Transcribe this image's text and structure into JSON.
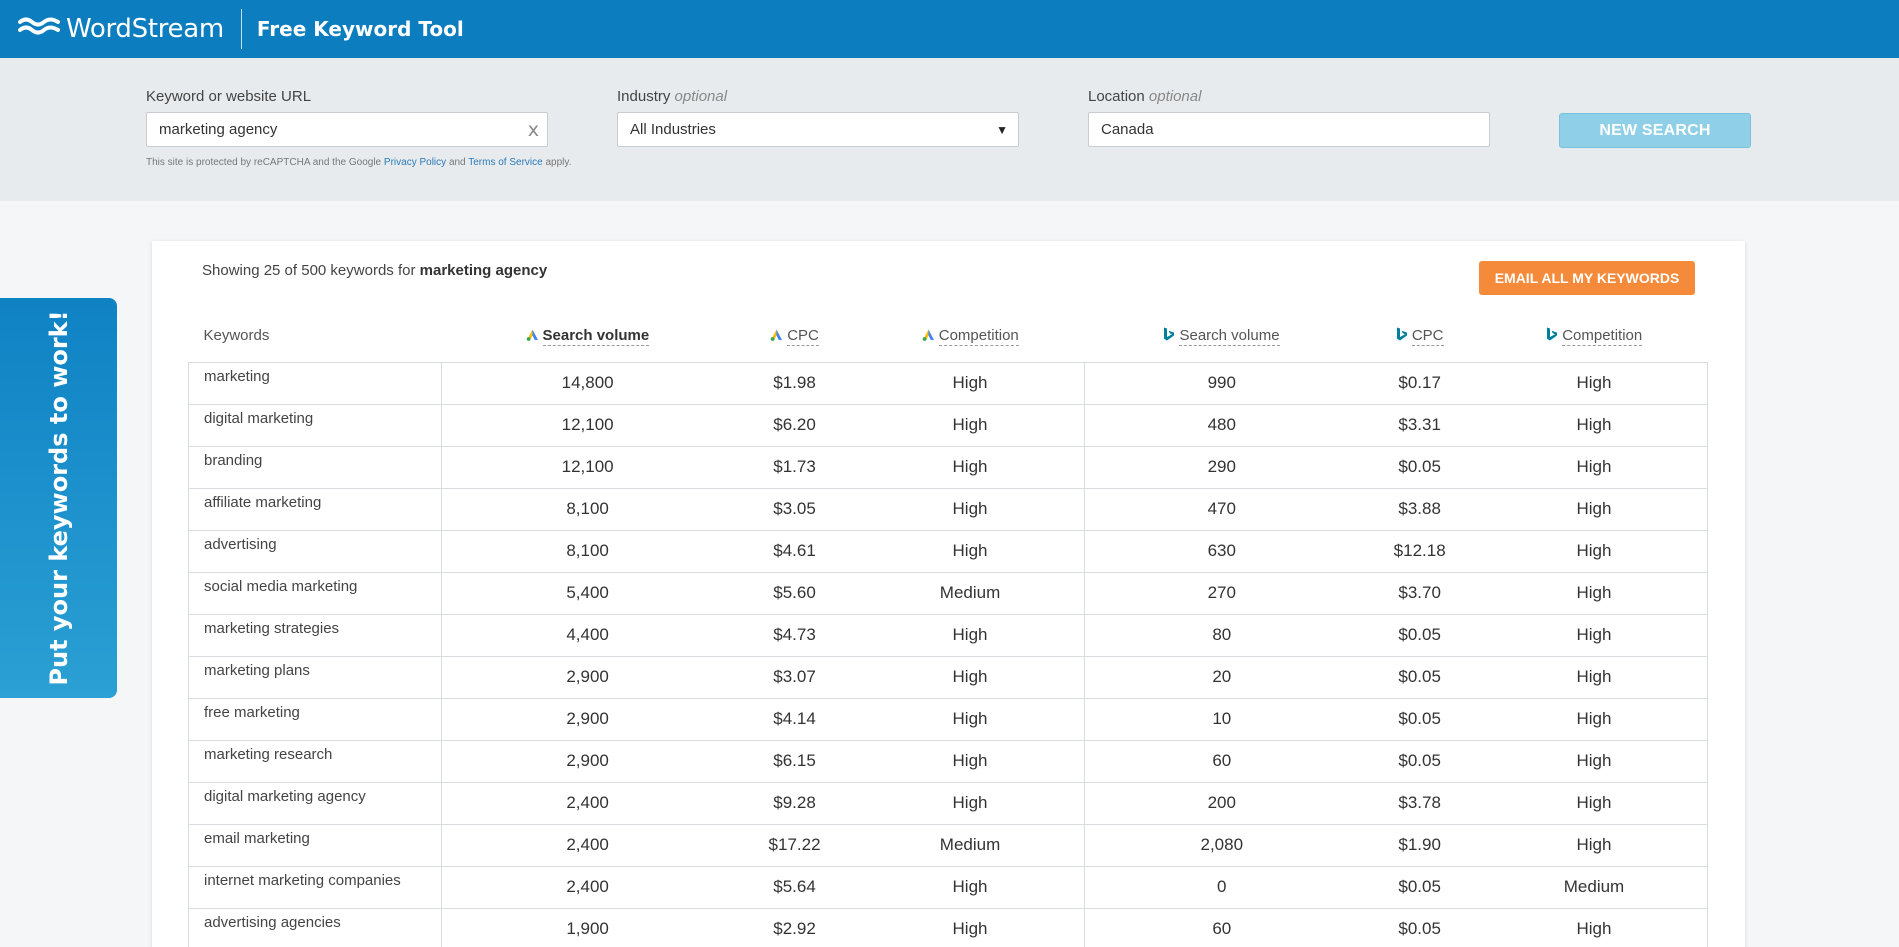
{
  "header": {
    "brand": "WordStream",
    "tool_title": "Free Keyword Tool"
  },
  "search": {
    "keyword_label": "Keyword or website URL",
    "keyword_value": "marketing agency",
    "clear_label": "x",
    "industry_label": "Industry",
    "industry_optional": "optional",
    "industry_value": "All Industries",
    "location_label": "Location",
    "location_optional": "optional",
    "location_value": "Canada",
    "button_label": "NEW SEARCH",
    "recaptcha_prefix": "This site is protected by reCAPTCHA and the Google",
    "privacy_link": "Privacy Policy",
    "and_text": "and",
    "terms_link": "Terms of Service",
    "recaptcha_suffix": "apply."
  },
  "side_tab": {
    "label": "Put your keywords to work!"
  },
  "results": {
    "showing_prefix": "Showing 25 of 500 keywords for",
    "query": "marketing agency",
    "email_button": "EMAIL ALL MY KEYWORDS",
    "columns": [
      {
        "label": "Keywords",
        "icon": null
      },
      {
        "label": "Search volume",
        "icon": "google-ads-icon",
        "bold": true
      },
      {
        "label": "CPC",
        "icon": "google-ads-icon"
      },
      {
        "label": "Competition",
        "icon": "google-ads-icon"
      },
      {
        "label": "Search volume",
        "icon": "bing-icon"
      },
      {
        "label": "CPC",
        "icon": "bing-icon"
      },
      {
        "label": "Competition",
        "icon": "bing-icon"
      }
    ],
    "rows": [
      [
        "marketing",
        "14,800",
        "$1.98",
        "High",
        "990",
        "$0.17",
        "High"
      ],
      [
        "digital marketing",
        "12,100",
        "$6.20",
        "High",
        "480",
        "$3.31",
        "High"
      ],
      [
        "branding",
        "12,100",
        "$1.73",
        "High",
        "290",
        "$0.05",
        "High"
      ],
      [
        "affiliate marketing",
        "8,100",
        "$3.05",
        "High",
        "470",
        "$3.88",
        "High"
      ],
      [
        "advertising",
        "8,100",
        "$4.61",
        "High",
        "630",
        "$12.18",
        "High"
      ],
      [
        "social media marketing",
        "5,400",
        "$5.60",
        "Medium",
        "270",
        "$3.70",
        "High"
      ],
      [
        "marketing strategies",
        "4,400",
        "$4.73",
        "High",
        "80",
        "$0.05",
        "High"
      ],
      [
        "marketing plans",
        "2,900",
        "$3.07",
        "High",
        "20",
        "$0.05",
        "High"
      ],
      [
        "free marketing",
        "2,900",
        "$4.14",
        "High",
        "10",
        "$0.05",
        "High"
      ],
      [
        "marketing research",
        "2,900",
        "$6.15",
        "High",
        "60",
        "$0.05",
        "High"
      ],
      [
        "digital marketing agency",
        "2,400",
        "$9.28",
        "High",
        "200",
        "$3.78",
        "High"
      ],
      [
        "email marketing",
        "2,400",
        "$17.22",
        "Medium",
        "2,080",
        "$1.90",
        "High"
      ],
      [
        "internet marketing companies",
        "2,400",
        "$5.64",
        "High",
        "0",
        "$0.05",
        "Medium"
      ],
      [
        "advertising agencies",
        "1,900",
        "$2.92",
        "High",
        "60",
        "$0.05",
        "High"
      ]
    ]
  },
  "colors": {
    "brand_blue": "#0c7dbf",
    "button_disabled": "#8fd0e8",
    "email_orange": "#f58a3a",
    "google_blue": "#4285f4",
    "google_yellow": "#fbbc04",
    "bing_teal": "#00809d"
  }
}
